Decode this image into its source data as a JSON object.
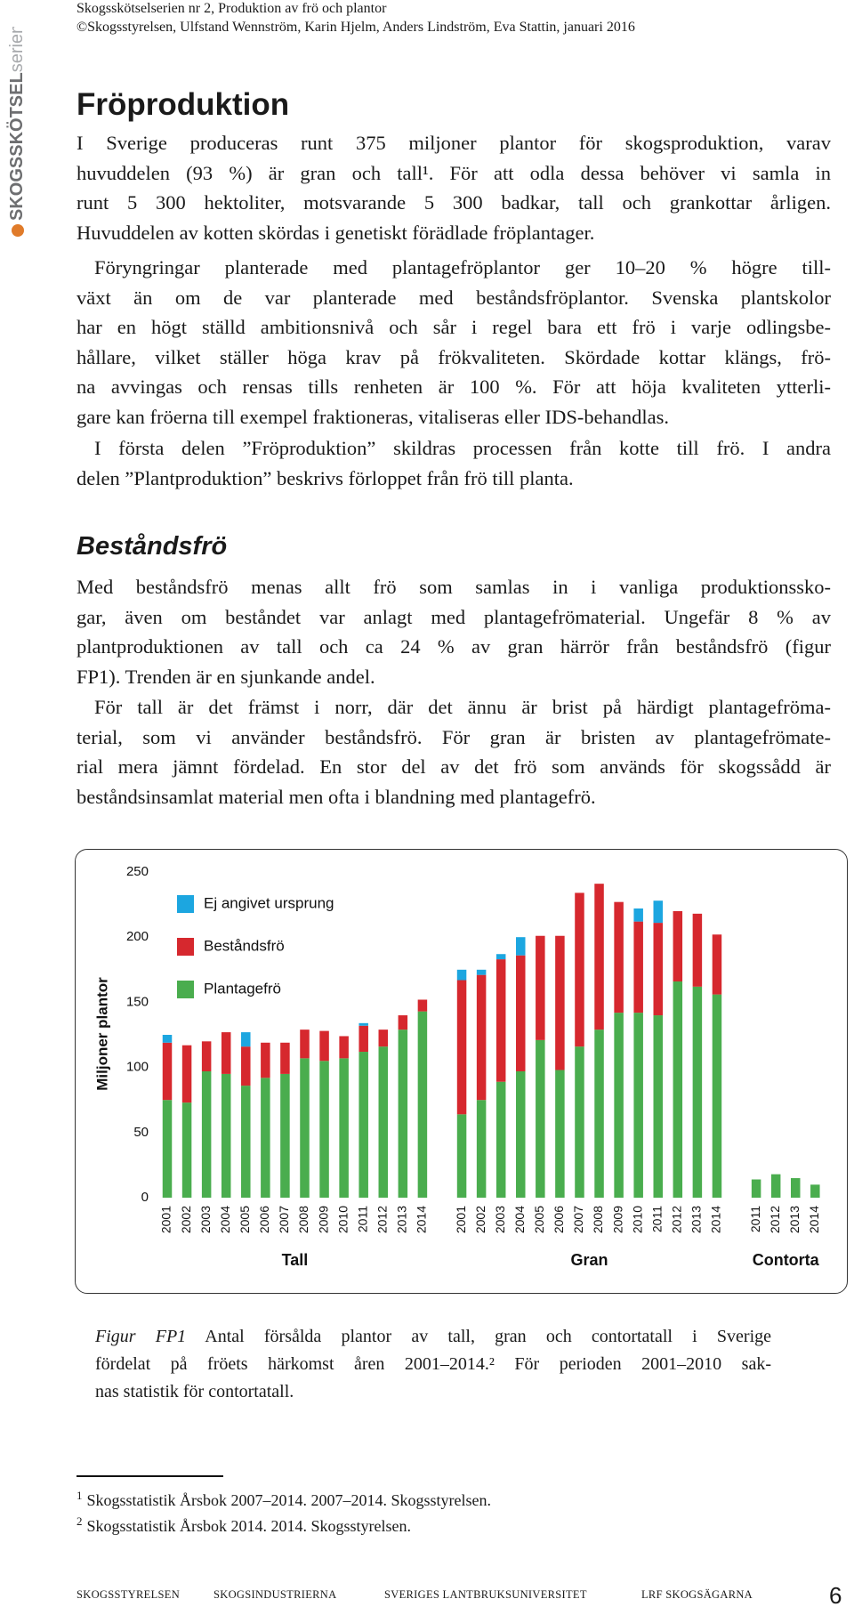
{
  "header": {
    "series_line": "Skogsskötselserien nr 2, Produktion av frö och plantor",
    "credits": "©Skogsstyrelsen, Ulfstand Wennström, Karin Hjelm, Anders Lindström, Eva Stattin, januari 2016"
  },
  "sidebar": {
    "brand": "SKOGSSKÖTSEL",
    "suffix": "serien"
  },
  "sections": [
    {
      "heading": "Fröproduktion",
      "paragraphs": [
        [
          "I Sverige produceras runt 375 miljoner plantor för skogsproduktion, varav",
          "huvuddelen (93 %) är gran och tall¹. För att odla dessa behöver vi samla in",
          "runt 5 300 hektoliter, motsvarande 5 300 badkar, tall och grankottar årligen.",
          "Huvuddelen av kotten skördas i genetiskt förädlade fröplantager."
        ],
        [
          "Föryngringar planterade med plantagefröplantor ger 10–20 % högre till-",
          "växt än om de var planterade med beståndsfröplantor. Svenska plantskolor",
          "har en högt ställd ambitionsnivå och sår i regel bara ett frö i varje odlingsbe-",
          "hållare, vilket ställer höga krav på frökvaliteten. Skördade kottar klängs, frö-",
          "na avvingas och rensas tills renheten är 100 %. För att höja kvaliteten ytterli-",
          "gare kan fröerna till exempel fraktioneras, vitaliseras eller IDS-behandlas."
        ],
        [
          "I första delen ”Fröproduktion” skildras processen från kotte till frö. I andra",
          "delen ”Plantproduktion” beskrivs förloppet från frö till planta."
        ]
      ]
    },
    {
      "heading": "Beståndsfrö",
      "paragraphs": [
        [
          "Med beståndsfrö menas allt frö som samlas in i vanliga produktionssko-",
          "gar, även om beståndet var anlagt med plantagefrömaterial. Ungefär 8 % av",
          "plantproduktionen av tall och ca 24 % av gran härrör från beståndsfrö (figur",
          "FP1). Trenden är en sjunkande andel."
        ],
        [
          "För tall är det främst i norr, där det ännu är brist på härdigt plantagefröma-",
          "terial, som vi använder beståndsfrö. För gran är bristen av plantagefrömate-",
          "rial mera jämnt fördelad. En stor del av det frö som används för skogssådd är",
          "beståndsinsamlat material men ofta i blandning med plantagefrö."
        ]
      ]
    }
  ],
  "chart_data": {
    "type": "bar",
    "stacked": true,
    "ylabel": "Miljoner plantor",
    "ylim": [
      0,
      250
    ],
    "yticks": [
      0,
      50,
      100,
      150,
      200,
      250
    ],
    "series": [
      {
        "name": "Plantagefrö",
        "color": "#4aad4e"
      },
      {
        "name": "Beståndsfrö",
        "color": "#d6282e"
      },
      {
        "name": "Ej angivet ursprung",
        "color": "#1ca6e0"
      }
    ],
    "groups": [
      {
        "name": "Tall",
        "categories": [
          "2001",
          "2002",
          "2003",
          "2004",
          "2005",
          "2006",
          "2007",
          "2008",
          "2009",
          "2010",
          "2011",
          "2012",
          "2013",
          "2014"
        ],
        "values": [
          [
            75,
            73,
            97,
            95,
            86,
            92,
            95,
            107,
            105,
            107,
            112,
            116,
            129,
            143
          ],
          [
            44,
            44,
            23,
            32,
            30,
            27,
            24,
            22,
            23,
            17,
            20,
            13,
            11,
            9
          ],
          [
            6,
            0,
            0,
            0,
            11,
            0,
            0,
            0,
            0,
            0,
            2,
            0,
            0,
            0
          ]
        ]
      },
      {
        "name": "Gran",
        "categories": [
          "2001",
          "2002",
          "2003",
          "2004",
          "2005",
          "2006",
          "2007",
          "2008",
          "2009",
          "2010",
          "2011",
          "2012",
          "2013",
          "2014"
        ],
        "values": [
          [
            64,
            75,
            89,
            97,
            121,
            98,
            116,
            129,
            142,
            142,
            140,
            166,
            162,
            156
          ],
          [
            103,
            96,
            94,
            89,
            80,
            103,
            118,
            112,
            85,
            70,
            71,
            54,
            56,
            46
          ],
          [
            8,
            4,
            4,
            14,
            0,
            0,
            0,
            0,
            0,
            10,
            17,
            0,
            0,
            0
          ]
        ]
      },
      {
        "name": "Contorta",
        "categories": [
          "2011",
          "2012",
          "2013",
          "2014"
        ],
        "values": [
          [
            14,
            18,
            15,
            10
          ]
        ]
      }
    ]
  },
  "caption": {
    "label": "Figur FP1",
    "lines": [
      "Antal försålda plantor av tall, gran och contortatall i Sverige",
      "fördelat på fröets härkomst åren 2001–2014.² För perioden 2001–2010 sak-",
      "nas statistik för contortatall."
    ]
  },
  "footnotes": [
    {
      "number": "1",
      "text": "Skogsstatistik Årsbok 2007–2014. 2007–2014. Skogsstyrelsen."
    },
    {
      "number": "2",
      "text": "Skogsstatistik Årsbok 2014. 2014. Skogsstyrelsen."
    }
  ],
  "footer": {
    "publishers": [
      "SKOGSSTYRELSEN",
      "SKOGSINDUSTRIERNA",
      "SVERIGES LANTBRUKSUNIVERSITET",
      "LRF SKOGSÄGARNA"
    ],
    "page_number": "6"
  }
}
